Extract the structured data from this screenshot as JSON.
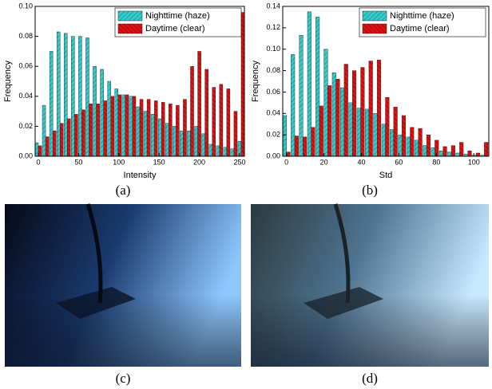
{
  "chart_data": [
    {
      "type": "bar",
      "caption": "(a)",
      "xlabel": "Intensity",
      "ylabel": "Frequency",
      "x": [
        0,
        9,
        18,
        27,
        36,
        45,
        54,
        63,
        72,
        81,
        90,
        99,
        108,
        117,
        126,
        135,
        144,
        153,
        162,
        171,
        180,
        189,
        198,
        207,
        216,
        225,
        234,
        243,
        252
      ],
      "series": [
        {
          "name": "Nighttime (haze)",
          "color": "#33cccc",
          "values": [
            0.009,
            0.034,
            0.07,
            0.083,
            0.082,
            0.08,
            0.08,
            0.079,
            0.06,
            0.058,
            0.05,
            0.045,
            0.041,
            0.04,
            0.033,
            0.03,
            0.028,
            0.025,
            0.022,
            0.02,
            0.017,
            0.017,
            0.02,
            0.015,
            0.008,
            0.007,
            0.006,
            0.005,
            0.01
          ]
        },
        {
          "name": "Daytime (clear)",
          "color": "#dd1111",
          "values": [
            0.007,
            0.013,
            0.017,
            0.022,
            0.025,
            0.028,
            0.031,
            0.035,
            0.035,
            0.037,
            0.04,
            0.041,
            0.041,
            0.04,
            0.038,
            0.038,
            0.037,
            0.036,
            0.035,
            0.034,
            0.038,
            0.06,
            0.07,
            0.058,
            0.046,
            0.048,
            0.045,
            0.03,
            0.096
          ]
        }
      ],
      "xlim": [
        -4,
        256
      ],
      "xticks": [
        0,
        50,
        100,
        150,
        200,
        250
      ],
      "ylim": [
        0,
        0.1
      ],
      "yticks": [
        {
          "value": 0,
          "label": "0.00"
        },
        {
          "value": 0.02,
          "label": "0.02"
        },
        {
          "value": 0.04,
          "label": "0.04"
        },
        {
          "value": 0.06,
          "label": "0.06"
        },
        {
          "value": 0.08,
          "label": "0.08"
        },
        {
          "value": 0.1,
          "label": "0.10"
        }
      ],
      "legend": "upper right"
    },
    {
      "type": "bar",
      "caption": "(b)",
      "xlabel": "Std",
      "ylabel": "Frequency",
      "x": [
        0,
        4.4,
        8.8,
        13.2,
        17.6,
        22,
        26.4,
        30.8,
        35.2,
        39.6,
        44,
        48.4,
        52.8,
        57.2,
        61.6,
        66,
        70.4,
        74.8,
        79.2,
        83.6,
        88,
        92.4,
        96.8,
        101.2,
        105.6
      ],
      "series": [
        {
          "name": "Nighttime (haze)",
          "color": "#33cccc",
          "values": [
            0.038,
            0.095,
            0.113,
            0.135,
            0.13,
            0.1,
            0.078,
            0.064,
            0.05,
            0.045,
            0.044,
            0.04,
            0.03,
            0.025,
            0.02,
            0.018,
            0.015,
            0.01,
            0.008,
            0.005,
            0.004,
            0.003,
            0.002,
            0.001,
            0.001
          ]
        },
        {
          "name": "Daytime (clear)",
          "color": "#dd1111",
          "values": [
            0.004,
            0.019,
            0.018,
            0.027,
            0.047,
            0.066,
            0.072,
            0.086,
            0.08,
            0.083,
            0.089,
            0.09,
            0.055,
            0.046,
            0.038,
            0.027,
            0.026,
            0.02,
            0.015,
            0.009,
            0.01,
            0.013,
            0.005,
            0.003,
            0.013
          ]
        }
      ],
      "xlim": [
        -2,
        108
      ],
      "xticks": [
        0,
        20,
        40,
        60,
        80,
        100
      ],
      "ylim": [
        0,
        0.14
      ],
      "yticks": [
        {
          "value": 0,
          "label": "0.00"
        },
        {
          "value": 0.02,
          "label": "0.02"
        },
        {
          "value": 0.04,
          "label": "0.04"
        },
        {
          "value": 0.06,
          "label": "0.06"
        },
        {
          "value": 0.08,
          "label": "0.08"
        },
        {
          "value": 0.1,
          "label": "0.10"
        },
        {
          "value": 0.12,
          "label": "0.12"
        },
        {
          "value": 0.14,
          "label": "0.14"
        }
      ],
      "legend": "upper right"
    }
  ],
  "images": [
    {
      "caption": "(c)"
    },
    {
      "caption": "(d)"
    }
  ]
}
